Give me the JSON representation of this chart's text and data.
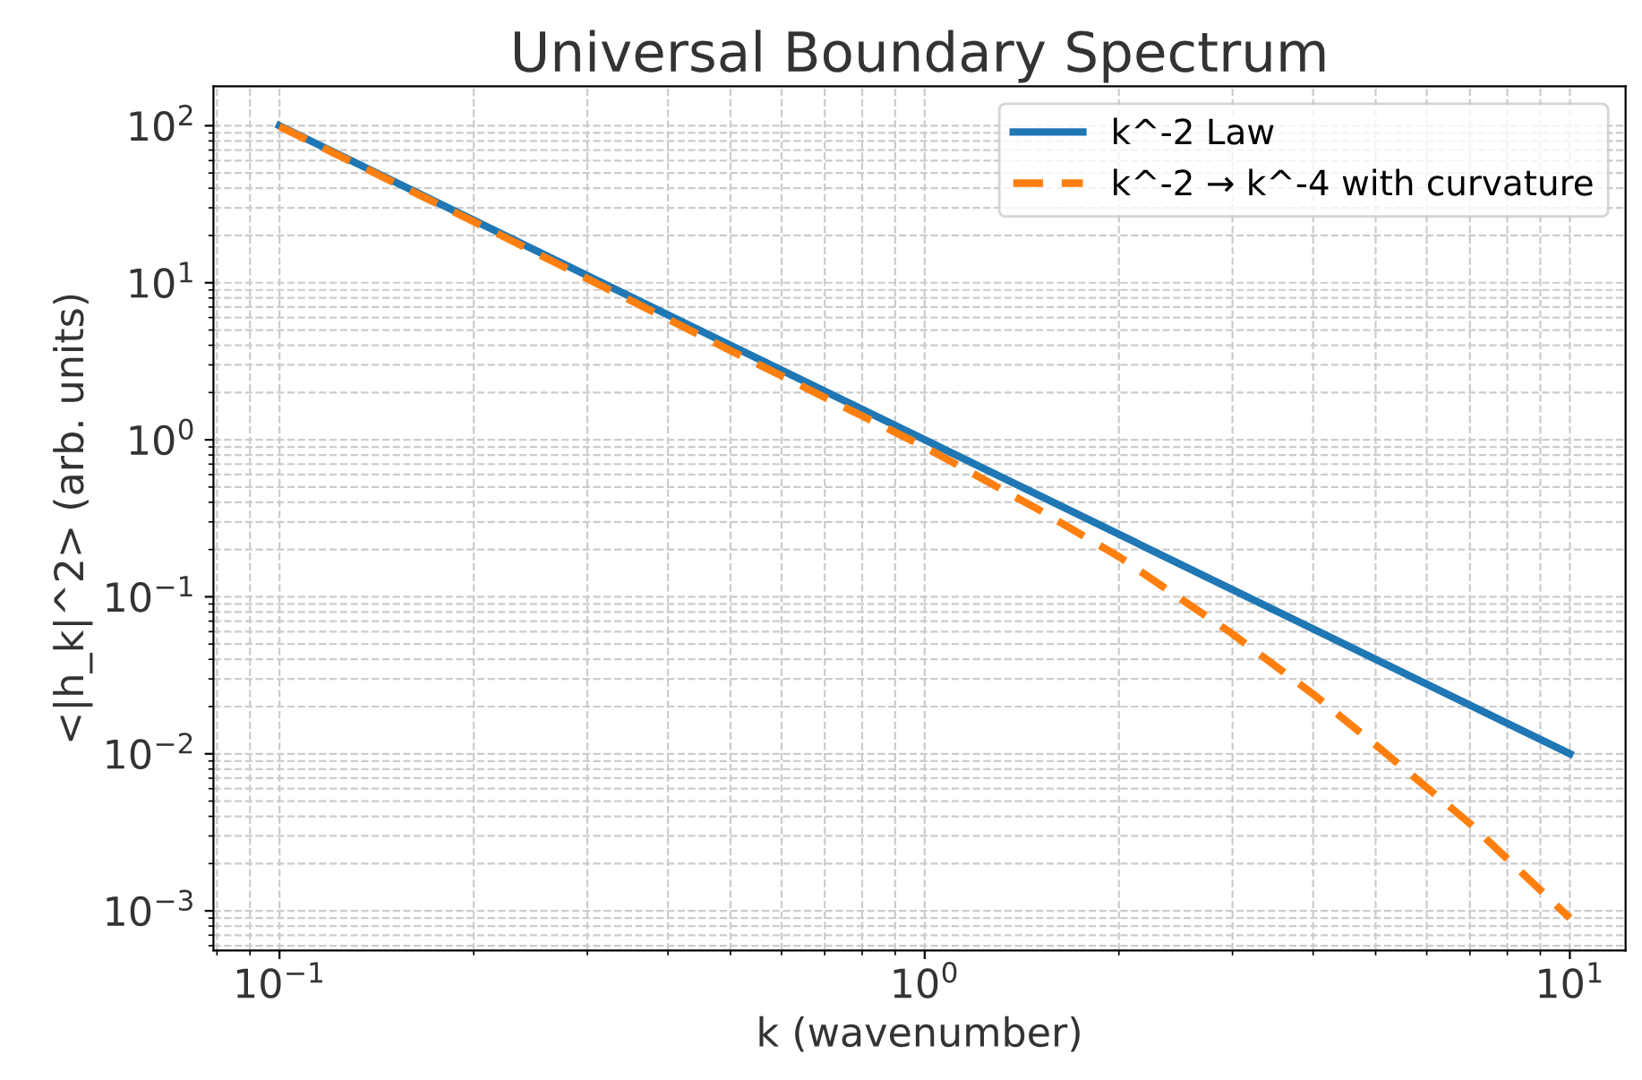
{
  "chart_data": {
    "type": "line",
    "title": "Universal Boundary Spectrum",
    "xlabel": "k (wavenumber)",
    "ylabel": "<|h_k|^2> (arb. units)",
    "series": [
      {
        "name": "k^-2 Law",
        "color": "#1f77b4",
        "line_style": "solid",
        "x": [
          0.1,
          1,
          10
        ],
        "values": [
          100,
          1,
          0.01
        ]
      },
      {
        "name": "k^-2 → k^-4 with curvature",
        "color": "#ff7f0e",
        "line_style": "dashed",
        "x": [
          0.1,
          0.2,
          0.5,
          1,
          1.5,
          2,
          3,
          4,
          5,
          7,
          10
        ],
        "values": [
          99,
          24.5,
          3.7,
          0.9,
          0.36,
          0.18,
          0.058,
          0.024,
          0.0114,
          0.0036,
          0.0009
        ]
      }
    ],
    "log": "xy",
    "xlim": [
      0.079,
      12.2
    ],
    "ylim": [
      0.00056,
      178
    ],
    "xticks": [
      {
        "value": 0.1,
        "label": "10$^{−1}$"
      },
      {
        "value": 1,
        "label": "10$^{0}$"
      },
      {
        "value": 10,
        "label": "10$^{1}$"
      }
    ],
    "yticks": [
      {
        "value": 0.001,
        "label": "10$^{−3}$"
      },
      {
        "value": 0.01,
        "label": "10$^{−2}$"
      },
      {
        "value": 0.1,
        "label": "10$^{−1}$"
      },
      {
        "value": 1,
        "label": "10$^{0}$"
      },
      {
        "value": 10,
        "label": "10$^{1}$"
      },
      {
        "value": 100,
        "label": "10$^{2}$"
      }
    ],
    "grid": true,
    "legend": "top right",
    "marker": "none"
  }
}
